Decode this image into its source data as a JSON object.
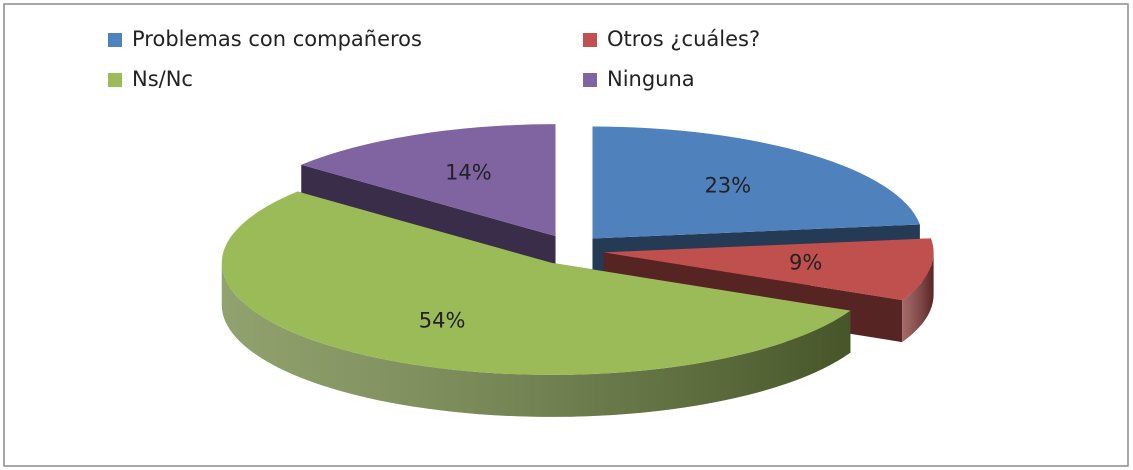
{
  "chart_data": {
    "type": "pie",
    "categories": [
      "Problemas con compañeros",
      "Otros ¿cuáles?",
      "Ns/Nc",
      "Ninguna"
    ],
    "values": [
      23,
      9,
      54,
      14
    ],
    "value_labels": [
      "23%",
      "9%",
      "54%",
      "14%"
    ],
    "colors": [
      "#4f81bd",
      "#c0504d",
      "#9bbb59",
      "#8064a2"
    ],
    "legend": "top"
  }
}
